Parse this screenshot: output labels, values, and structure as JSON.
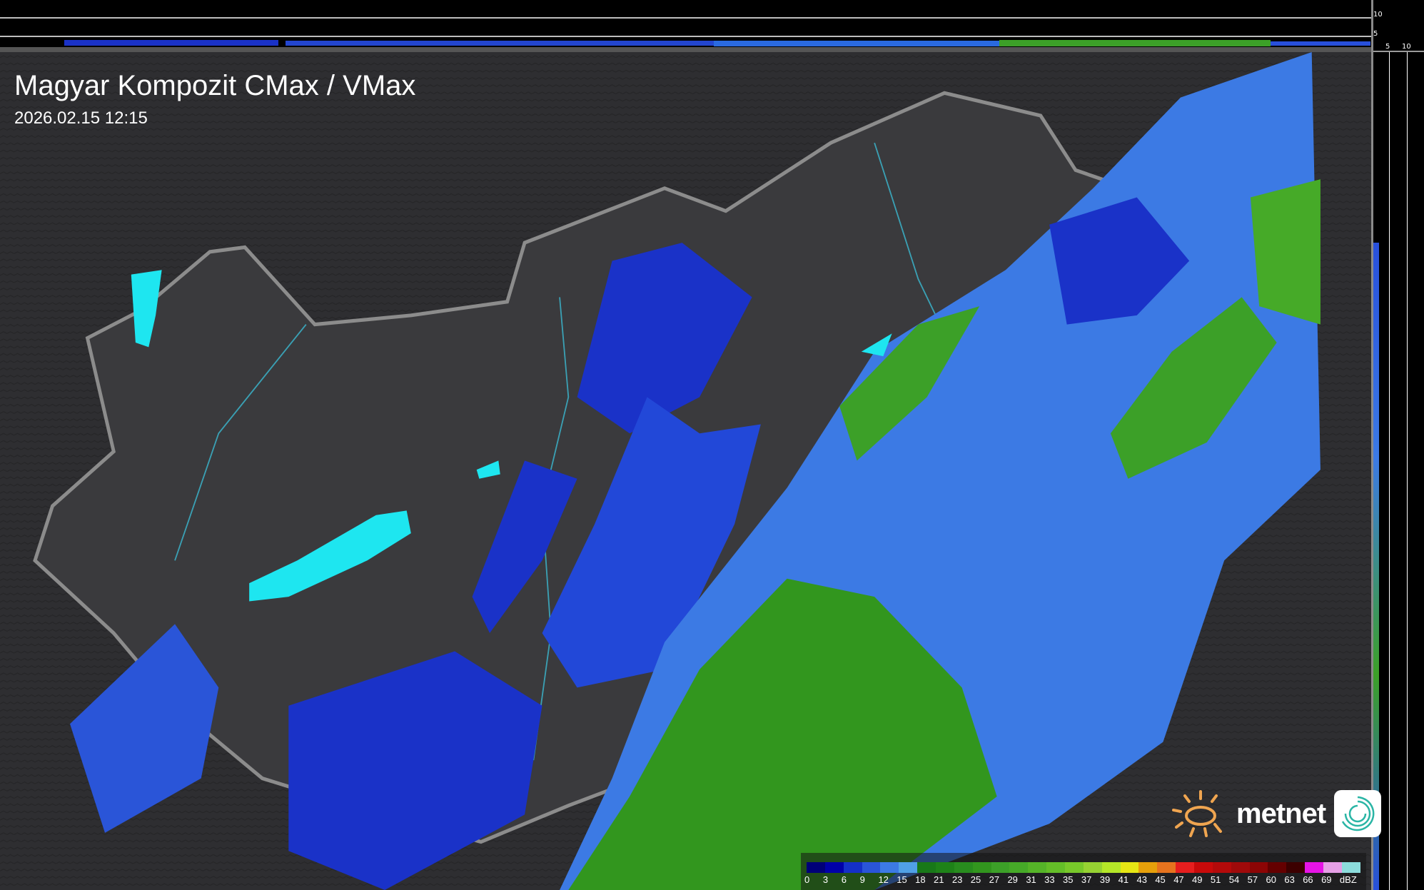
{
  "header": {
    "title": "Magyar Kompozit CMax / VMax",
    "timestamp": "2026.02.15 12:15"
  },
  "profile_axes": {
    "vertical_ticks": [
      "10",
      "5"
    ],
    "horizontal_ticks": [
      "5",
      "10"
    ]
  },
  "legend": {
    "labels": [
      "0",
      "3",
      "6",
      "9",
      "12",
      "15",
      "18",
      "21",
      "23",
      "25",
      "27",
      "29",
      "31",
      "33",
      "35",
      "37",
      "39",
      "41",
      "43",
      "45",
      "47",
      "49",
      "51",
      "54",
      "57",
      "60",
      "63",
      "66",
      "69"
    ],
    "unit": "dBZ",
    "colors": [
      "#000078",
      "#0000a8",
      "#1430c8",
      "#2a55d8",
      "#3c7ae4",
      "#50a0e6",
      "#187818",
      "#1e8218",
      "#288c1e",
      "#32961e",
      "#3ca028",
      "#46aa28",
      "#55b428",
      "#64be28",
      "#78c82a",
      "#96d232",
      "#b4e628",
      "#e6e614",
      "#e6a00a",
      "#e6731e",
      "#e61e1e",
      "#c80a0a",
      "#b40a0a",
      "#a00a0a",
      "#8c0505",
      "#640000",
      "#3c0000",
      "#e614e6",
      "#e6a0e6",
      "#8cdcdc"
    ]
  },
  "branding": {
    "logo_text": "metnet",
    "sun_color": "#f0a550",
    "app_icon_color": "#2ab5a5"
  },
  "colors": {
    "background": "#2e2e30",
    "border": "#8c8c8c",
    "river": "#3aa0b4",
    "lake": "#1ee6f0"
  }
}
